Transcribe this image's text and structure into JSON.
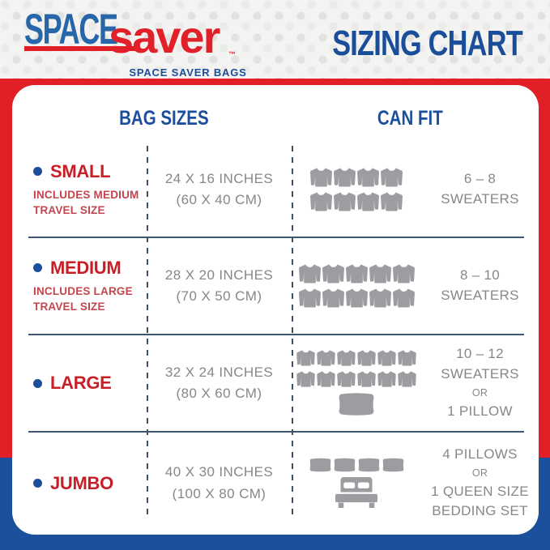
{
  "logo": {
    "space": "SPACE",
    "saver": "saver",
    "tm": "™",
    "subtitle": "SPACE SAVER BAGS"
  },
  "title": "SIZING CHART",
  "table": {
    "col_headers": {
      "bag_sizes": "BAG SIZES",
      "can_fit": "CAN FIT"
    },
    "rows": [
      {
        "name": "SMALL",
        "note_lines": [
          "INCLUDES MEDIUM",
          "TRAVEL SIZE"
        ],
        "dims": [
          "24 X 16 INCHES",
          "(60 X 40 CM)"
        ],
        "icons": [
          {
            "type": "sweater",
            "rows": [
              4,
              4
            ]
          }
        ],
        "fit": [
          {
            "text": "6 – 8"
          },
          {
            "text": "SWEATERS"
          }
        ]
      },
      {
        "name": "MEDIUM",
        "note_lines": [
          "INCLUDES LARGE",
          "TRAVEL SIZE"
        ],
        "dims": [
          "28 X 20 INCHES",
          "(70 X 50 CM)"
        ],
        "icons": [
          {
            "type": "sweater",
            "rows": [
              5,
              5
            ]
          }
        ],
        "fit": [
          {
            "text": "8 – 10"
          },
          {
            "text": "SWEATERS"
          }
        ]
      },
      {
        "name": "LARGE",
        "note_lines": [],
        "dims": [
          "32 X 24 INCHES",
          "(80 X 60 CM)"
        ],
        "icons": [
          {
            "type": "sweater",
            "rows": [
              6,
              6
            ]
          },
          {
            "type": "pillow",
            "count": 1
          }
        ],
        "fit": [
          {
            "text": "10 – 12"
          },
          {
            "text": "SWEATERS"
          },
          {
            "text": "OR",
            "small": true
          },
          {
            "text": "1 PILLOW"
          }
        ]
      },
      {
        "name": "JUMBO",
        "note_lines": [],
        "dims": [
          "40 X 30 INCHES",
          "(100 X 80 CM)"
        ],
        "icons": [
          {
            "type": "pillow",
            "count": 4
          },
          {
            "type": "bed",
            "count": 1
          }
        ],
        "fit": [
          {
            "text": "4 PILLOWS"
          },
          {
            "text": "OR",
            "small": true
          },
          {
            "text": "1 QUEEN SIZE"
          },
          {
            "text": "BEDDING SET"
          }
        ]
      }
    ]
  },
  "colors": {
    "red": "#e11f26",
    "blue_band": "#1c4f9c",
    "header_blue": "#1c4f9b",
    "logo_space_blue": "#2767a9",
    "size_name_red": "#c81f27",
    "note_red": "#c4454d",
    "gray_text": "#85878a",
    "icon_gray": "#9c9da0",
    "bg_gray": "#f3f3f1"
  },
  "icon_names": [
    "sweater-icon",
    "pillow-icon",
    "bed-icon",
    "bullet-icon"
  ]
}
